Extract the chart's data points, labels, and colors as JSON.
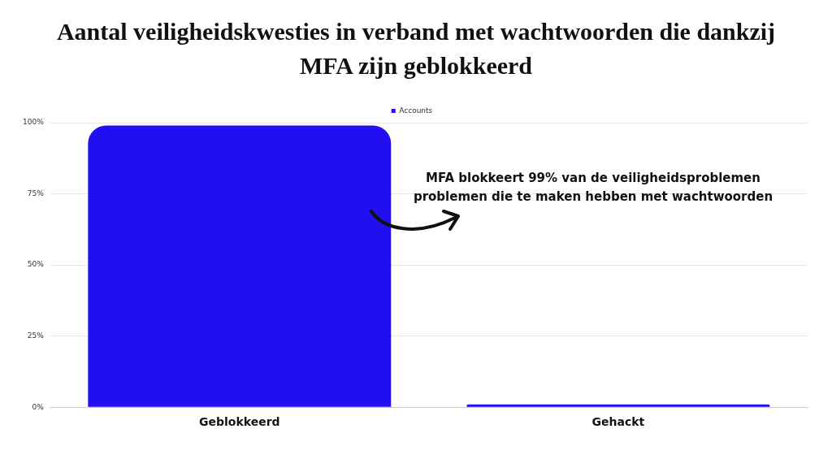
{
  "chart_data": {
    "type": "bar",
    "title": "Aantal veiligheidskwesties in verband met wachtwoorden die dankzij MFA zijn geblokkeerd",
    "categories": [
      "Geblokkeerd",
      "Gehackt"
    ],
    "series": [
      {
        "name": "Accounts",
        "color": "#2010f0",
        "values": [
          99,
          1
        ]
      }
    ],
    "ylim": [
      0,
      100
    ],
    "yticks": [
      {
        "value": 0,
        "label": "0%"
      },
      {
        "value": 25,
        "label": "25%"
      },
      {
        "value": 50,
        "label": "50%"
      },
      {
        "value": 75,
        "label": "75%"
      },
      {
        "value": 100,
        "label": "100%"
      }
    ],
    "grid": "y",
    "legend": "top",
    "annotations": [
      "MFA blokkeert 99% van de veiligheidsproblemen problemen die te maken hebben met wachtwoorden"
    ]
  }
}
